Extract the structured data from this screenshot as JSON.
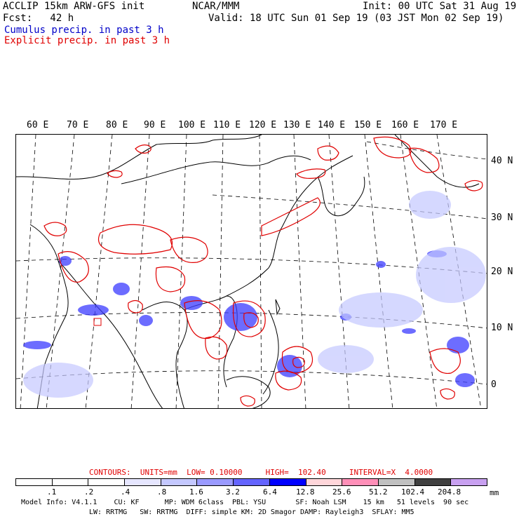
{
  "header": {
    "title": "ACCLIP 15km ARW-GFS init",
    "fcst": "Fcst:   42 h",
    "org": "NCAR/MMM",
    "init": "Init: 00 UTC Sat 31 Aug 19",
    "valid": "Valid: 18 UTC Sun 01 Sep 19 (03 JST Mon 02 Sep 19)",
    "cumulus": "Cumulus precip. in past 3 h",
    "explicit": "Explicit precip. in past 3 h"
  },
  "map": {
    "lon_labels": [
      "60 E",
      "70 E",
      "80 E",
      "90 E",
      "100 E",
      "110 E",
      "120 E",
      "130 E",
      "140 E",
      "150 E",
      "160 E",
      "170 E"
    ],
    "lat_labels": [
      "40 N",
      "30 N",
      "20 N",
      "10 N",
      "0"
    ],
    "colors": {
      "cumulus": "#3c3cff",
      "explicit": "#e00000",
      "coast": "#000000"
    }
  },
  "contours": {
    "text": "CONTOURS:  UNITS=mm  LOW= 0.10000     HIGH=  102.40     INTERVAL=X  4.0000"
  },
  "legend": {
    "ticks": [
      ".1",
      ".2",
      ".4",
      ".8",
      "1.6",
      "3.2",
      "6.4",
      "12.8",
      "25.6",
      "51.2",
      "102.4",
      "204.8"
    ],
    "units": "mm",
    "colors": [
      "#ffffff",
      "#ffffff",
      "#ffffff",
      "#e6e6ff",
      "#c4c8ff",
      "#9a9aff",
      "#6464ff",
      "#0000ff",
      "#ffd6da",
      "#ff8fb8",
      "#c0c0c0",
      "#404040",
      "#c8a0f0"
    ]
  },
  "model_info": {
    "line1": "Model Info: V4.1.1    CU: KF      MP: WDM 6class  PBL: YSU       SF: Noah LSM    15 km   51 levels  90 sec",
    "line2": "LW: RRTMG   SW: RRTMG  DIFF: simple KM: 2D Smagor DAMP: Rayleigh3  SFLAY: MM5"
  }
}
